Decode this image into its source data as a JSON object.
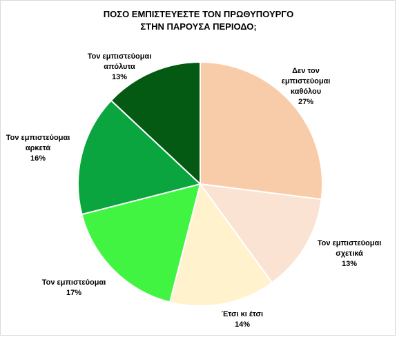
{
  "chart_data": {
    "type": "pie",
    "title": [
      "ΠΟΣΟ ΕΜΠΙΣΤΕΥΕΣΤΕ ΤΟΝ ΠΡΩΘΥΠΟΥΡΓΟ",
      "ΣΤΗΝ ΠΑΡΟΥΣΑ ΠΕΡΙΟΔΟ;"
    ],
    "slices": [
      {
        "label": [
          "Δεν τον",
          "εμπιστεύομαι",
          "καθόλου"
        ],
        "value": 27,
        "value_label": "27%",
        "color": "#f8cba9"
      },
      {
        "label": [
          "Τον εμπιστεύομαι",
          "σχετικά"
        ],
        "value": 13,
        "value_label": "13%",
        "color": "#fbe3d3"
      },
      {
        "label": [
          "Έτσι κι έτσι"
        ],
        "value": 14,
        "value_label": "14%",
        "color": "#fff2cc"
      },
      {
        "label": [
          "Τον εμπιστεύομαι"
        ],
        "value": 17,
        "value_label": "17%",
        "color": "#41f441"
      },
      {
        "label": [
          "Τον εμπιστεύομαι",
          "αρκετά"
        ],
        "value": 16,
        "value_label": "16%",
        "color": "#0aa53e"
      },
      {
        "label": [
          "Τον εμπιστεύομαι",
          "απόλυτα"
        ],
        "value": 13,
        "value_label": "13%",
        "color": "#045a12"
      }
    ],
    "start_angle": "12 o'clock",
    "direction": "clockwise",
    "legend": "none"
  }
}
